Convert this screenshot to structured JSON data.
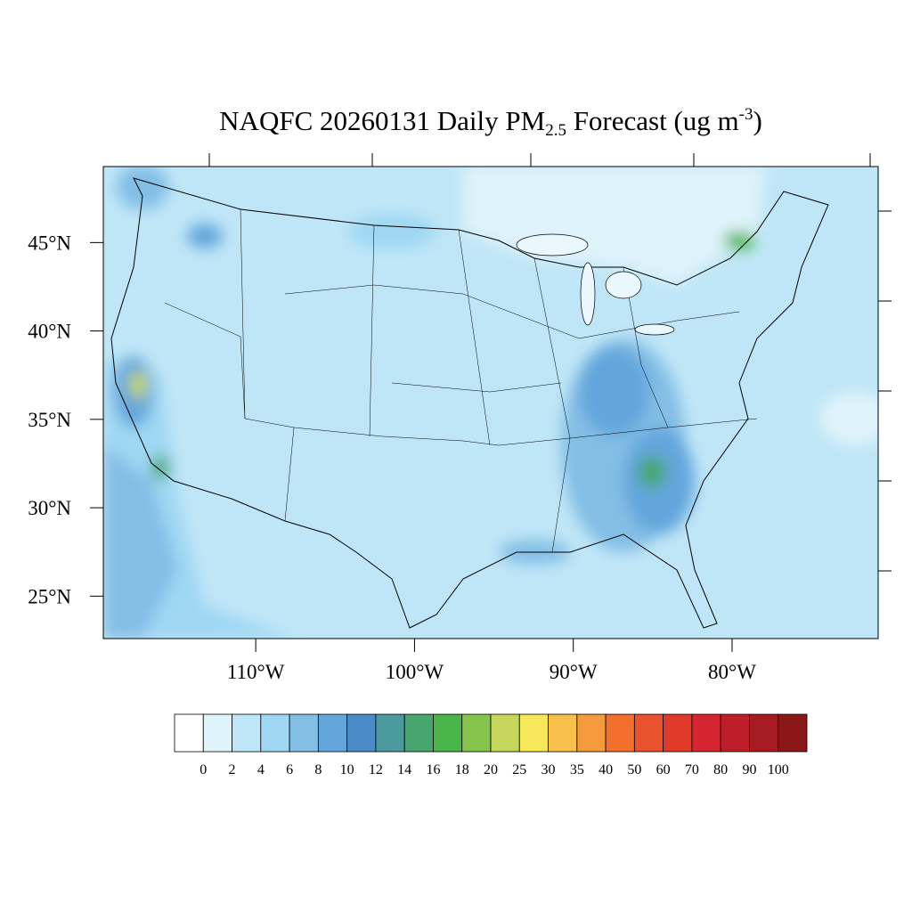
{
  "title": {
    "main": "NAQFC 20260131 Daily PM",
    "sub": "2.5",
    "rest": " Forecast (ug m",
    "sup": "-3",
    "end": ")"
  },
  "map": {
    "latlim": [
      22.6,
      49.3
    ],
    "lonlim": [
      119.6,
      70.8
    ],
    "lat_ticks": [
      {
        "value": 45,
        "label": "45°N"
      },
      {
        "value": 40,
        "label": "40°N"
      },
      {
        "value": 35,
        "label": "35°N"
      },
      {
        "value": 30,
        "label": "30°N"
      },
      {
        "value": 25,
        "label": "25°N"
      }
    ],
    "lon_ticks": [
      {
        "value": 110,
        "label": "110°W"
      },
      {
        "value": 100,
        "label": "100°W"
      },
      {
        "value": 90,
        "label": "90°W"
      },
      {
        "value": 80,
        "label": "80°W"
      }
    ]
  },
  "colorbar": {
    "colors": [
      "#ffffff",
      "#dff3fb",
      "#bfe6f7",
      "#9fd7f3",
      "#83bee5",
      "#64a6db",
      "#4a8bc8",
      "#4a9a9e",
      "#46a66e",
      "#4ab54a",
      "#86c44e",
      "#c5d75a",
      "#f7e55a",
      "#f7bf4b",
      "#f59a3d",
      "#f26f2c",
      "#e8522c",
      "#df3a2a",
      "#d42530",
      "#be1e2a",
      "#a61b22",
      "#8b1719"
    ],
    "labels": [
      0,
      2,
      4,
      6,
      8,
      10,
      12,
      14,
      16,
      18,
      20,
      25,
      30,
      35,
      40,
      50,
      60,
      70,
      80,
      90,
      100
    ]
  }
}
